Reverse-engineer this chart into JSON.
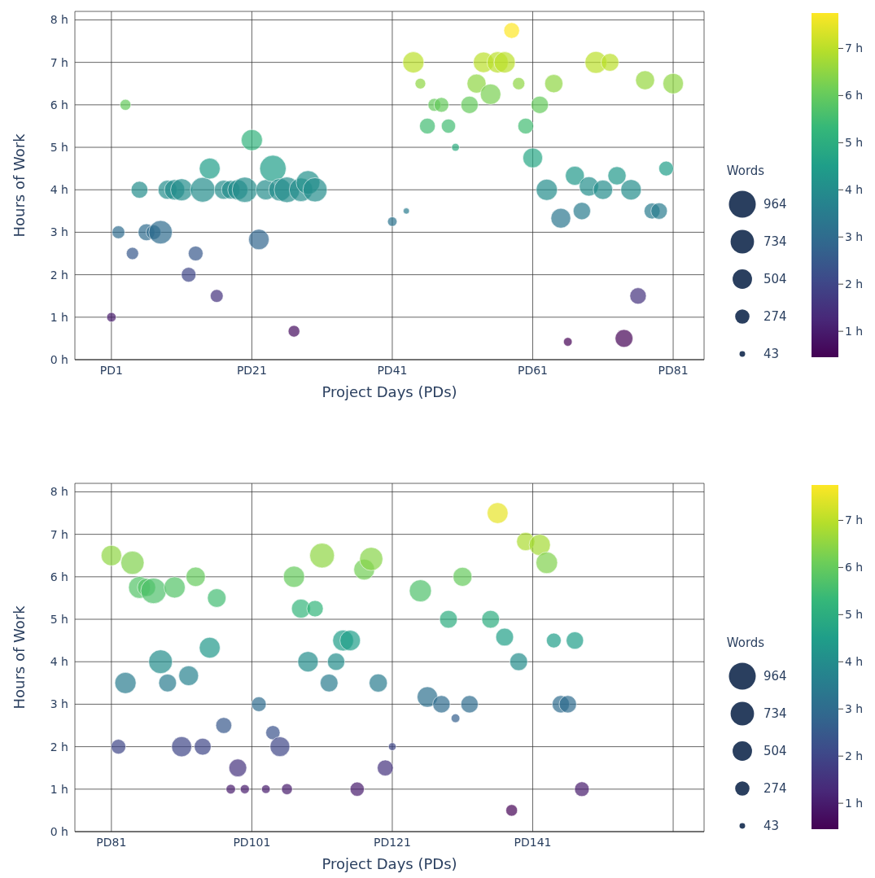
{
  "chart_data": [
    {
      "type": "bubble",
      "xlabel": "Project Days (PDs)",
      "ylabel": "Hours of Work",
      "legend_title": "Words",
      "grid": true,
      "categories": [
        "PD1",
        null,
        null,
        null,
        null,
        null,
        null,
        null,
        null,
        null,
        null,
        null,
        null,
        null,
        null,
        null,
        null,
        null,
        null,
        null,
        "PD21",
        null,
        null,
        null,
        null,
        null,
        null,
        null,
        null,
        null,
        null,
        null,
        null,
        null,
        null,
        null,
        null,
        null,
        null,
        null,
        "PD41",
        null,
        null,
        null,
        null,
        null,
        null,
        null,
        null,
        null,
        null,
        null,
        null,
        null,
        null,
        null,
        null,
        null,
        null,
        null,
        "PD61",
        null,
        null,
        null,
        null,
        null,
        null,
        null,
        null,
        null,
        null,
        null,
        null,
        null,
        null,
        null,
        null,
        null,
        null,
        null,
        "PD81"
      ],
      "ylim": [
        0,
        8.2
      ],
      "yticks": [
        {
          "value": 0,
          "label": "0 h"
        },
        {
          "value": 1,
          "label": "1 h"
        },
        {
          "value": 2,
          "label": "2 h"
        },
        {
          "value": 3,
          "label": "3 h"
        },
        {
          "value": 4,
          "label": "4 h"
        },
        {
          "value": 5,
          "label": "5 h"
        },
        {
          "value": 6,
          "label": "6 h"
        },
        {
          "value": 7,
          "label": "7 h"
        },
        {
          "value": 8,
          "label": "8 h"
        }
      ],
      "clim": [
        0.45,
        7.75
      ],
      "cticks": [
        {
          "value": 1,
          "label": "1 h"
        },
        {
          "value": 2,
          "label": "2 h"
        },
        {
          "value": 3,
          "label": "3 h"
        },
        {
          "value": 4,
          "label": "4 h"
        },
        {
          "value": 5,
          "label": "5 h"
        },
        {
          "value": 6,
          "label": "6 h"
        },
        {
          "value": 7,
          "label": "7 h"
        }
      ],
      "size_legend": [
        964,
        734,
        504,
        274,
        43
      ],
      "values": [
        1,
        3,
        6,
        2.5,
        4,
        3,
        3,
        3,
        4,
        4,
        4,
        2,
        2.5,
        4,
        4.5,
        1.5,
        4,
        4,
        4,
        4,
        5.17,
        2.83,
        4,
        4.5,
        4,
        4,
        0.67,
        4,
        4.17,
        4,
        null,
        null,
        null,
        null,
        null,
        null,
        null,
        null,
        null,
        null,
        3.25,
        null,
        3.5,
        7,
        6.5,
        5.5,
        6,
        6,
        5.5,
        5,
        null,
        6,
        6.5,
        7,
        6.25,
        7,
        7,
        7.75,
        6.5,
        5.5,
        4.75,
        6,
        4,
        6.5,
        3.33,
        0.42,
        4.33,
        3.5,
        4.08,
        7,
        4,
        7,
        4.33,
        0.5,
        4,
        1.5,
        6.58,
        3.5,
        3.5,
        4.5,
        6.5
      ],
      "cvalues": [
        1,
        3,
        6,
        2.5,
        4,
        3,
        3,
        3,
        4,
        4,
        4,
        2,
        2.5,
        4,
        4.5,
        1.5,
        4,
        4,
        4,
        4,
        5.17,
        2.83,
        4,
        4.5,
        4,
        4,
        0.67,
        4,
        4.17,
        4,
        null,
        null,
        null,
        null,
        null,
        null,
        null,
        null,
        null,
        null,
        3.25,
        null,
        3.5,
        7,
        6.5,
        5.5,
        6,
        6,
        5.5,
        5,
        null,
        6,
        6.5,
        7,
        6.25,
        7,
        7,
        7.75,
        6.5,
        5.5,
        4.75,
        6,
        4,
        6.5,
        3.33,
        0.42,
        4.33,
        3.5,
        4.08,
        7,
        4,
        7,
        4.33,
        0.5,
        4,
        1.5,
        6.58,
        3.5,
        3.5,
        4.5,
        6.5
      ],
      "sizes": [
        120,
        220,
        160,
        200,
        380,
        380,
        290,
        735,
        480,
        550,
        650,
        290,
        290,
        815,
        580,
        220,
        480,
        460,
        540,
        850,
        600,
        560,
        540,
        935,
        670,
        870,
        180,
        735,
        750,
        780,
        null,
        null,
        null,
        null,
        null,
        null,
        null,
        null,
        null,
        null,
        120,
        null,
        50,
        600,
        150,
        330,
        220,
        290,
        270,
        80,
        null,
        400,
        480,
        560,
        560,
        600,
        600,
        330,
        200,
        330,
        520,
        400,
        600,
        440,
        520,
        100,
        480,
        400,
        500,
        640,
        500,
        420,
        440,
        420,
        560,
        360,
        480,
        340,
        360,
        290,
        560
      ]
    },
    {
      "type": "bubble",
      "xlabel": "Project Days (PDs)",
      "ylabel": "Hours of Work",
      "legend_title": "Words",
      "grid": true,
      "categories": [
        "PD81",
        null,
        null,
        null,
        null,
        null,
        null,
        null,
        null,
        null,
        null,
        null,
        null,
        null,
        null,
        null,
        null,
        null,
        null,
        null,
        "PD101",
        null,
        null,
        null,
        null,
        null,
        null,
        null,
        null,
        null,
        null,
        null,
        null,
        null,
        null,
        null,
        null,
        null,
        null,
        null,
        "PD121",
        null,
        null,
        null,
        null,
        null,
        null,
        null,
        null,
        null,
        null,
        null,
        null,
        null,
        null,
        null,
        null,
        null,
        null,
        null,
        "PD141",
        null,
        null,
        null,
        null,
        null,
        null,
        null,
        null,
        null,
        null,
        null,
        null,
        null,
        null,
        null,
        null,
        null,
        null,
        null,
        null
      ],
      "ylim": [
        0,
        8.2
      ],
      "yticks": [
        {
          "value": 0,
          "label": "0 h"
        },
        {
          "value": 1,
          "label": "1 h"
        },
        {
          "value": 2,
          "label": "2 h"
        },
        {
          "value": 3,
          "label": "3 h"
        },
        {
          "value": 4,
          "label": "4 h"
        },
        {
          "value": 5,
          "label": "5 h"
        },
        {
          "value": 6,
          "label": "6 h"
        },
        {
          "value": 7,
          "label": "7 h"
        },
        {
          "value": 8,
          "label": "8 h"
        }
      ],
      "clim": [
        0.45,
        7.75
      ],
      "cticks": [
        {
          "value": 1,
          "label": "1 h"
        },
        {
          "value": 2,
          "label": "2 h"
        },
        {
          "value": 3,
          "label": "3 h"
        },
        {
          "value": 4,
          "label": "4 h"
        },
        {
          "value": 5,
          "label": "5 h"
        },
        {
          "value": 6,
          "label": "6 h"
        },
        {
          "value": 7,
          "label": "7 h"
        }
      ],
      "size_legend": [
        964,
        734,
        504,
        274,
        43
      ],
      "values": [
        6.5,
        2,
        3.5,
        6.33,
        5.75,
        5.75,
        5.67,
        4,
        3.5,
        5.75,
        2,
        3.67,
        6,
        2,
        4.33,
        5.5,
        2.5,
        1,
        1.5,
        1,
        null,
        3,
        1,
        2.33,
        2,
        1,
        6,
        5.25,
        4,
        5.25,
        6.5,
        3.5,
        4,
        4.5,
        4.5,
        1,
        6.17,
        6.42,
        3.5,
        1.5,
        2,
        null,
        null,
        null,
        5.67,
        3.17,
        null,
        3,
        5,
        2.67,
        6,
        3,
        null,
        null,
        5,
        7.5,
        4.58,
        0.5,
        4,
        6.83,
        null,
        6.75,
        6.33,
        4.5,
        3,
        3,
        4.5,
        1,
        null,
        null,
        null,
        null,
        null,
        null,
        null,
        null,
        null,
        null,
        null,
        null,
        null
      ],
      "cvalues": [
        6.5,
        2,
        3.5,
        6.33,
        5.75,
        5.75,
        5.67,
        4,
        3.5,
        5.75,
        2,
        3.67,
        6,
        2,
        4.33,
        5.5,
        2.5,
        1,
        1.5,
        1,
        null,
        3,
        1,
        2.33,
        2,
        1,
        6,
        5.25,
        4,
        5.25,
        6.5,
        3.5,
        4,
        4.5,
        4.5,
        1,
        6.17,
        6.42,
        3.5,
        1.5,
        2,
        null,
        null,
        null,
        5.67,
        3.17,
        null,
        3,
        5,
        2.67,
        6,
        3,
        null,
        null,
        5,
        7.5,
        4.58,
        0.5,
        4,
        6.83,
        null,
        6.75,
        6.33,
        4.5,
        3,
        3,
        4.5,
        1,
        null,
        null,
        null,
        null,
        null,
        null,
        null,
        null,
        null,
        null,
        null,
        null,
        null
      ],
      "sizes": [
        560,
        290,
        600,
        720,
        640,
        440,
        870,
        750,
        420,
        600,
        540,
        520,
        500,
        380,
        580,
        460,
        340,
        120,
        420,
        110,
        null,
        290,
        100,
        270,
        520,
        160,
        600,
        480,
        560,
        360,
        815,
        420,
        400,
        580,
        560,
        270,
        580,
        720,
        440,
        340,
        80,
        null,
        null,
        null,
        650,
        560,
        null,
        400,
        420,
        100,
        480,
        400,
        null,
        null,
        420,
        580,
        420,
        180,
        420,
        440,
        null,
        600,
        620,
        290,
        400,
        400,
        400,
        290,
        null,
        null,
        null,
        null,
        null,
        null,
        null,
        null,
        null,
        null,
        null,
        null,
        null
      ]
    }
  ]
}
